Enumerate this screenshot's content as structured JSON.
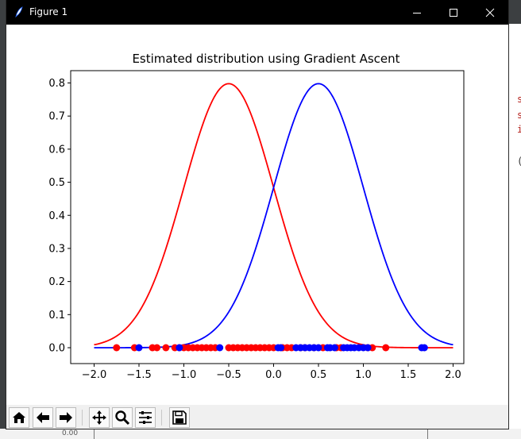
{
  "window": {
    "title": "Figure 1",
    "buttons": [
      "minimize",
      "maximize",
      "close"
    ]
  },
  "toolbar": {
    "buttons": [
      "home-icon",
      "back-arrow-icon",
      "forward-arrow-icon",
      "pan-icon",
      "zoom-icon",
      "configure-subplots-icon",
      "save-icon"
    ]
  },
  "background": {
    "editor_glyphs": [
      "s",
      "s",
      "i",
      "("
    ],
    "bottom_number": "0.00"
  },
  "chart_data": {
    "type": "line",
    "title": "Estimated distribution using Gradient Ascent",
    "xlabel": "",
    "ylabel": "",
    "xlim": [
      -2.2,
      2.2
    ],
    "ylim": [
      -0.05,
      0.84
    ],
    "xticks": [
      "−2.0",
      "−1.5",
      "−1.0",
      "−0.5",
      "0.0",
      "0.5",
      "1.0",
      "1.5",
      "2.0"
    ],
    "yticks": [
      "0.0",
      "0.1",
      "0.2",
      "0.3",
      "0.4",
      "0.5",
      "0.6",
      "0.7",
      "0.8"
    ],
    "xtick_values": [
      -2.0,
      -1.5,
      -1.0,
      -0.5,
      0.0,
      0.5,
      1.0,
      1.5,
      2.0
    ],
    "ytick_values": [
      0.0,
      0.1,
      0.2,
      0.3,
      0.4,
      0.5,
      0.6,
      0.7,
      0.8
    ],
    "grid": false,
    "series": [
      {
        "kind": "curve",
        "color": "#ff0000",
        "mean": -0.5,
        "std": 0.5,
        "x_range": [
          -2.0,
          2.0
        ]
      },
      {
        "kind": "curve",
        "color": "#0000ff",
        "mean": 0.5,
        "std": 0.5,
        "x_range": [
          -2.0,
          2.0
        ]
      },
      {
        "kind": "scatter",
        "color": "#ff0000",
        "y": 0.0,
        "x": [
          -1.75,
          -1.55,
          -1.35,
          -1.3,
          -1.2,
          -1.1,
          -1.05,
          -1.0,
          -0.95,
          -0.9,
          -0.85,
          -0.8,
          -0.75,
          -0.7,
          -0.65,
          -0.5,
          -0.45,
          -0.4,
          -0.35,
          -0.3,
          -0.25,
          -0.2,
          -0.15,
          -0.1,
          -0.05,
          0.0,
          0.1,
          0.15,
          0.2,
          0.3,
          0.35,
          0.45,
          0.55,
          0.7,
          0.75,
          1.05,
          1.1,
          1.25
        ]
      },
      {
        "kind": "scatter",
        "color": "#0000ff",
        "y": 0.0,
        "x": [
          -1.5,
          -1.05,
          -0.6,
          0.05,
          0.08,
          0.25,
          0.3,
          0.35,
          0.4,
          0.45,
          0.5,
          0.6,
          0.63,
          0.68,
          0.78,
          0.82,
          0.86,
          0.9,
          0.95,
          1.0,
          1.05,
          1.65,
          1.68
        ]
      }
    ]
  }
}
